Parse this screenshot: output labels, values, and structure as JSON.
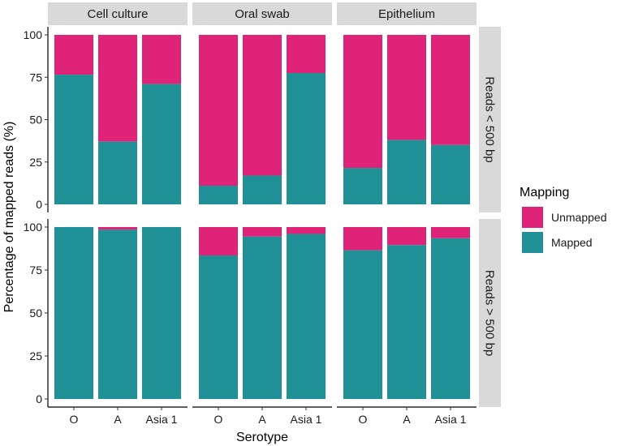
{
  "chart_data": {
    "type": "bar",
    "stacked": true,
    "xlabel": "Serotype",
    "ylabel": "Percentage of mapped reads (%)",
    "ylim": [
      0,
      100
    ],
    "yticks": [
      0,
      25,
      50,
      75,
      100
    ],
    "y_tick_labels": [
      "0",
      "25",
      "50",
      "75",
      "100"
    ],
    "categories": [
      "O",
      "A",
      "Asia 1"
    ],
    "facet_columns": [
      "Cell culture",
      "Oral swab",
      "Epithelium"
    ],
    "facet_rows": [
      "Reads < 500 bp",
      "Reads > 500 bp"
    ],
    "legend": {
      "title": "Mapping",
      "position": "right",
      "entries": [
        {
          "name": "Unmapped",
          "color": "#df2379"
        },
        {
          "name": "Mapped",
          "color": "#1e9096"
        }
      ]
    },
    "panels": [
      {
        "row": "Reads < 500 bp",
        "column": "Cell culture",
        "mapped": [
          76.5,
          37,
          71
        ],
        "unmapped": [
          23.5,
          63,
          29
        ]
      },
      {
        "row": "Reads < 500 bp",
        "column": "Oral swab",
        "mapped": [
          11,
          17,
          77.5
        ],
        "unmapped": [
          89,
          83,
          22.5
        ]
      },
      {
        "row": "Reads < 500 bp",
        "column": "Epithelium",
        "mapped": [
          21.5,
          38,
          35
        ],
        "unmapped": [
          78.5,
          62,
          65
        ]
      },
      {
        "row": "Reads > 500 bp",
        "column": "Cell culture",
        "mapped": [
          100,
          98.5,
          100
        ],
        "unmapped": [
          0,
          1.5,
          0
        ]
      },
      {
        "row": "Reads > 500 bp",
        "column": "Oral swab",
        "mapped": [
          83.5,
          94.5,
          96
        ],
        "unmapped": [
          16.5,
          5.5,
          4
        ]
      },
      {
        "row": "Reads > 500 bp",
        "column": "Epithelium",
        "mapped": [
          86.5,
          89.5,
          93.5
        ],
        "unmapped": [
          13.5,
          10.5,
          6.5
        ]
      }
    ]
  }
}
